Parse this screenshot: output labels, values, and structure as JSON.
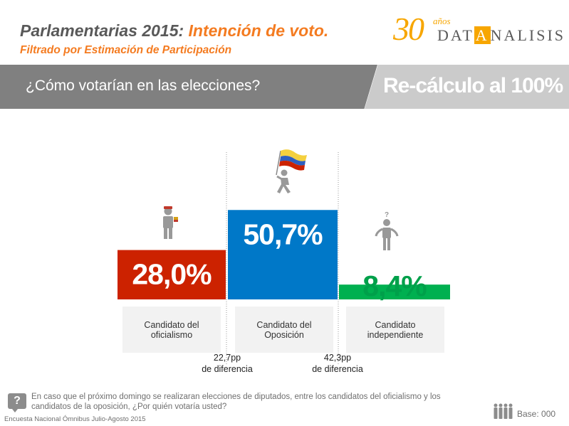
{
  "header": {
    "title_part1": "Parlamentarias 2015:",
    "title_part2": "Intención de voto.",
    "subtitle": "Filtrado por Estimación de Participación"
  },
  "logo": {
    "number": "30",
    "years": "años",
    "brand_pre": "DAT",
    "brand_highlight": "A",
    "brand_post": "NALISIS",
    "color": "#f7a600"
  },
  "band": {
    "question": "¿Cómo votarían en las elecciones?",
    "recalc": "Re-cálculo al 100%"
  },
  "chart_data": {
    "type": "bar",
    "categories": [
      "Candidato del oficialismo",
      "Candidato del Oposición",
      "Candidato independiente"
    ],
    "category_lines": [
      [
        "Candidato del",
        "oficialismo"
      ],
      [
        "Candidato del",
        "Oposición"
      ],
      [
        "Candidato",
        "independiente"
      ]
    ],
    "values": [
      28.0,
      50.7,
      8.4
    ],
    "value_labels": [
      "28,0%",
      "50,7%",
      "8,4%"
    ],
    "colors": [
      "#cc2200",
      "#0078c8",
      "#00b050"
    ],
    "label_colors": [
      "#ffffff",
      "#ffffff",
      "#00a04a"
    ],
    "icons": [
      "officialist-person-icon",
      "opposition-flag-person-icon",
      "independent-question-person-icon"
    ],
    "ylim": [
      0,
      100
    ],
    "annotations": [
      {
        "lines": [
          "22,7pp",
          "de diferencia"
        ]
      },
      {
        "lines": [
          "42,3pp",
          "de diferencia"
        ]
      }
    ]
  },
  "footer": {
    "question_icon": "?",
    "question": "En caso que el próximo domingo se realizaran elecciones de diputados, entre los candidatos del oficialismo y los candidatos de la oposición, ¿Por quién votaría usted?",
    "survey": "Encuesta Nacional Ómnibus Julio-Agosto 2015",
    "base": "Base: 000",
    "base_icon": "people-group-icon"
  }
}
